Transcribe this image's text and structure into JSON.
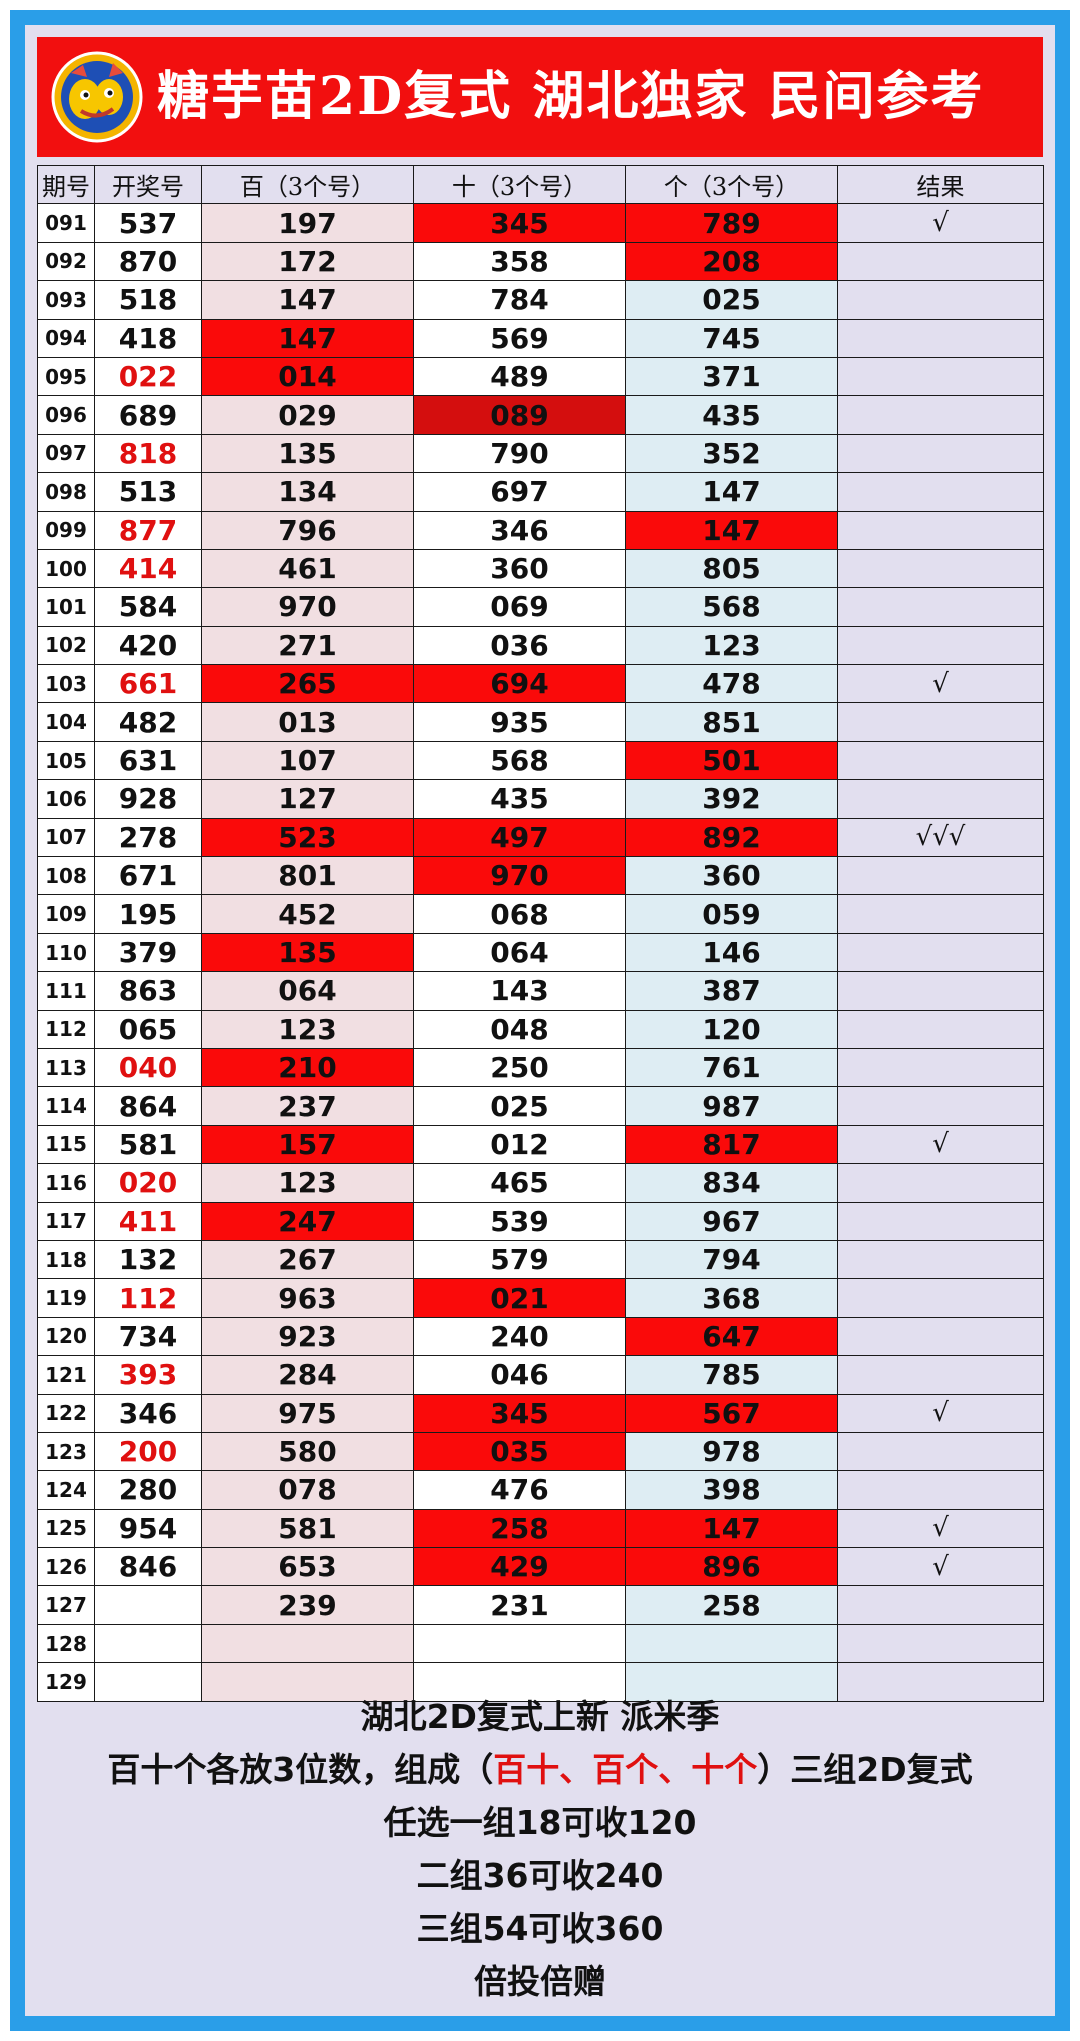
{
  "header": {
    "title": "糖芋苗2D复式  湖北独家  民间参考",
    "logo_icon": "cartoon-mascot-logo"
  },
  "table": {
    "columns": [
      "期号",
      "开奖号",
      "百（3个号）",
      "十（3个号）",
      "个（3个号）",
      "结果"
    ],
    "rows": [
      {
        "period": "091",
        "draw": "537",
        "draw_red": false,
        "bai": "197",
        "shi": "345",
        "ge": "789",
        "result": "√",
        "hit": [
          "shi",
          "ge"
        ]
      },
      {
        "period": "092",
        "draw": "870",
        "draw_red": false,
        "bai": "172",
        "shi": "358",
        "ge": "208",
        "result": "",
        "hit": [
          "ge"
        ]
      },
      {
        "period": "093",
        "draw": "518",
        "draw_red": false,
        "bai": "147",
        "shi": "784",
        "ge": "025",
        "result": "",
        "hit": []
      },
      {
        "period": "094",
        "draw": "418",
        "draw_red": false,
        "bai": "147",
        "shi": "569",
        "ge": "745",
        "result": "",
        "hit": [
          "bai"
        ]
      },
      {
        "period": "095",
        "draw": "022",
        "draw_red": true,
        "bai": "014",
        "shi": "489",
        "ge": "371",
        "result": "",
        "hit": [
          "bai"
        ]
      },
      {
        "period": "096",
        "draw": "689",
        "draw_red": false,
        "bai": "029",
        "shi": "089",
        "ge": "435",
        "result": "",
        "hit": [
          "shi"
        ]
      },
      {
        "period": "097",
        "draw": "818",
        "draw_red": true,
        "bai": "135",
        "shi": "790",
        "ge": "352",
        "result": "",
        "hit": []
      },
      {
        "period": "098",
        "draw": "513",
        "draw_red": false,
        "bai": "134",
        "shi": "697",
        "ge": "147",
        "result": "",
        "hit": []
      },
      {
        "period": "099",
        "draw": "877",
        "draw_red": true,
        "bai": "796",
        "shi": "346",
        "ge": "147",
        "result": "",
        "hit": [
          "ge"
        ]
      },
      {
        "period": "100",
        "draw": "414",
        "draw_red": true,
        "bai": "461",
        "shi": "360",
        "ge": "805",
        "result": "",
        "hit": []
      },
      {
        "period": "101",
        "draw": "584",
        "draw_red": false,
        "bai": "970",
        "shi": "069",
        "ge": "568",
        "result": "",
        "hit": []
      },
      {
        "period": "102",
        "draw": "420",
        "draw_red": false,
        "bai": "271",
        "shi": "036",
        "ge": "123",
        "result": "",
        "hit": []
      },
      {
        "period": "103",
        "draw": "661",
        "draw_red": true,
        "bai": "265",
        "shi": "694",
        "ge": "478",
        "result": "√",
        "hit": [
          "bai",
          "shi"
        ]
      },
      {
        "period": "104",
        "draw": "482",
        "draw_red": false,
        "bai": "013",
        "shi": "935",
        "ge": "851",
        "result": "",
        "hit": []
      },
      {
        "period": "105",
        "draw": "631",
        "draw_red": false,
        "bai": "107",
        "shi": "568",
        "ge": "501",
        "result": "",
        "hit": [
          "ge"
        ]
      },
      {
        "period": "106",
        "draw": "928",
        "draw_red": false,
        "bai": "127",
        "shi": "435",
        "ge": "392",
        "result": "",
        "hit": []
      },
      {
        "period": "107",
        "draw": "278",
        "draw_red": false,
        "bai": "523",
        "shi": "497",
        "ge": "892",
        "result": "√√√",
        "hit": [
          "bai",
          "shi",
          "ge"
        ]
      },
      {
        "period": "108",
        "draw": "671",
        "draw_red": false,
        "bai": "801",
        "shi": "970",
        "ge": "360",
        "result": "",
        "hit": [
          "shi"
        ]
      },
      {
        "period": "109",
        "draw": "195",
        "draw_red": false,
        "bai": "452",
        "shi": "068",
        "ge": "059",
        "result": "",
        "hit": []
      },
      {
        "period": "110",
        "draw": "379",
        "draw_red": false,
        "bai": "135",
        "shi": "064",
        "ge": "146",
        "result": "",
        "hit": [
          "bai"
        ]
      },
      {
        "period": "111",
        "draw": "863",
        "draw_red": false,
        "bai": "064",
        "shi": "143",
        "ge": "387",
        "result": "",
        "hit": []
      },
      {
        "period": "112",
        "draw": "065",
        "draw_red": false,
        "bai": "123",
        "shi": "048",
        "ge": "120",
        "result": "",
        "hit": []
      },
      {
        "period": "113",
        "draw": "040",
        "draw_red": true,
        "bai": "210",
        "shi": "250",
        "ge": "761",
        "result": "",
        "hit": [
          "bai"
        ]
      },
      {
        "period": "114",
        "draw": "864",
        "draw_red": false,
        "bai": "237",
        "shi": "025",
        "ge": "987",
        "result": "",
        "hit": []
      },
      {
        "period": "115",
        "draw": "581",
        "draw_red": false,
        "bai": "157",
        "shi": "012",
        "ge": "817",
        "result": "√",
        "hit": [
          "bai",
          "ge"
        ]
      },
      {
        "period": "116",
        "draw": "020",
        "draw_red": true,
        "bai": "123",
        "shi": "465",
        "ge": "834",
        "result": "",
        "hit": []
      },
      {
        "period": "117",
        "draw": "411",
        "draw_red": true,
        "bai": "247",
        "shi": "539",
        "ge": "967",
        "result": "",
        "hit": [
          "bai"
        ]
      },
      {
        "period": "118",
        "draw": "132",
        "draw_red": false,
        "bai": "267",
        "shi": "579",
        "ge": "794",
        "result": "",
        "hit": []
      },
      {
        "period": "119",
        "draw": "112",
        "draw_red": true,
        "bai": "963",
        "shi": "021",
        "ge": "368",
        "result": "",
        "hit": [
          "shi"
        ]
      },
      {
        "period": "120",
        "draw": "734",
        "draw_red": false,
        "bai": "923",
        "shi": "240",
        "ge": "647",
        "result": "",
        "hit": [
          "ge"
        ]
      },
      {
        "period": "121",
        "draw": "393",
        "draw_red": true,
        "bai": "284",
        "shi": "046",
        "ge": "785",
        "result": "",
        "hit": []
      },
      {
        "period": "122",
        "draw": "346",
        "draw_red": false,
        "bai": "975",
        "shi": "345",
        "ge": "567",
        "result": "√",
        "hit": [
          "shi",
          "ge"
        ]
      },
      {
        "period": "123",
        "draw": "200",
        "draw_red": true,
        "bai": "580",
        "shi": "035",
        "ge": "978",
        "result": "",
        "hit": [
          "shi"
        ]
      },
      {
        "period": "124",
        "draw": "280",
        "draw_red": false,
        "bai": "078",
        "shi": "476",
        "ge": "398",
        "result": "",
        "hit": []
      },
      {
        "period": "125",
        "draw": "954",
        "draw_red": false,
        "bai": "581",
        "shi": "258",
        "ge": "147",
        "result": "√",
        "hit": [
          "shi",
          "ge"
        ]
      },
      {
        "period": "126",
        "draw": "846",
        "draw_red": false,
        "bai": "653",
        "shi": "429",
        "ge": "896",
        "result": "√",
        "hit": [
          "shi",
          "ge"
        ]
      },
      {
        "period": "127",
        "draw": "",
        "draw_red": false,
        "bai": "239",
        "shi": "231",
        "ge": "258",
        "result": "",
        "hit": []
      },
      {
        "period": "128",
        "draw": "",
        "draw_red": false,
        "bai": "",
        "shi": "",
        "ge": "",
        "result": "",
        "hit": []
      },
      {
        "period": "129",
        "draw": "",
        "draw_red": false,
        "bai": "",
        "shi": "",
        "ge": "",
        "result": "",
        "hit": []
      }
    ]
  },
  "footer": {
    "line1": "湖北2D复式上新 派米季",
    "line2_pre": "百十个各放3位数，组成（",
    "line2_red": "百十、百个、十个",
    "line2_post": "）三组2D复式",
    "line3": "任选一组18可收120",
    "line4": "二组36可收240",
    "line5": "三组54可收360",
    "line6": "倍投倍赠"
  },
  "colors": {
    "frame": "#2a9ee8",
    "banner": "#f20f0f",
    "hit": "#fa0a0a",
    "red_text": "#e01010",
    "bai_bg": "#f1dfe2",
    "ge_bg": "#deedf3",
    "panel_bg": "#e2dfef"
  }
}
